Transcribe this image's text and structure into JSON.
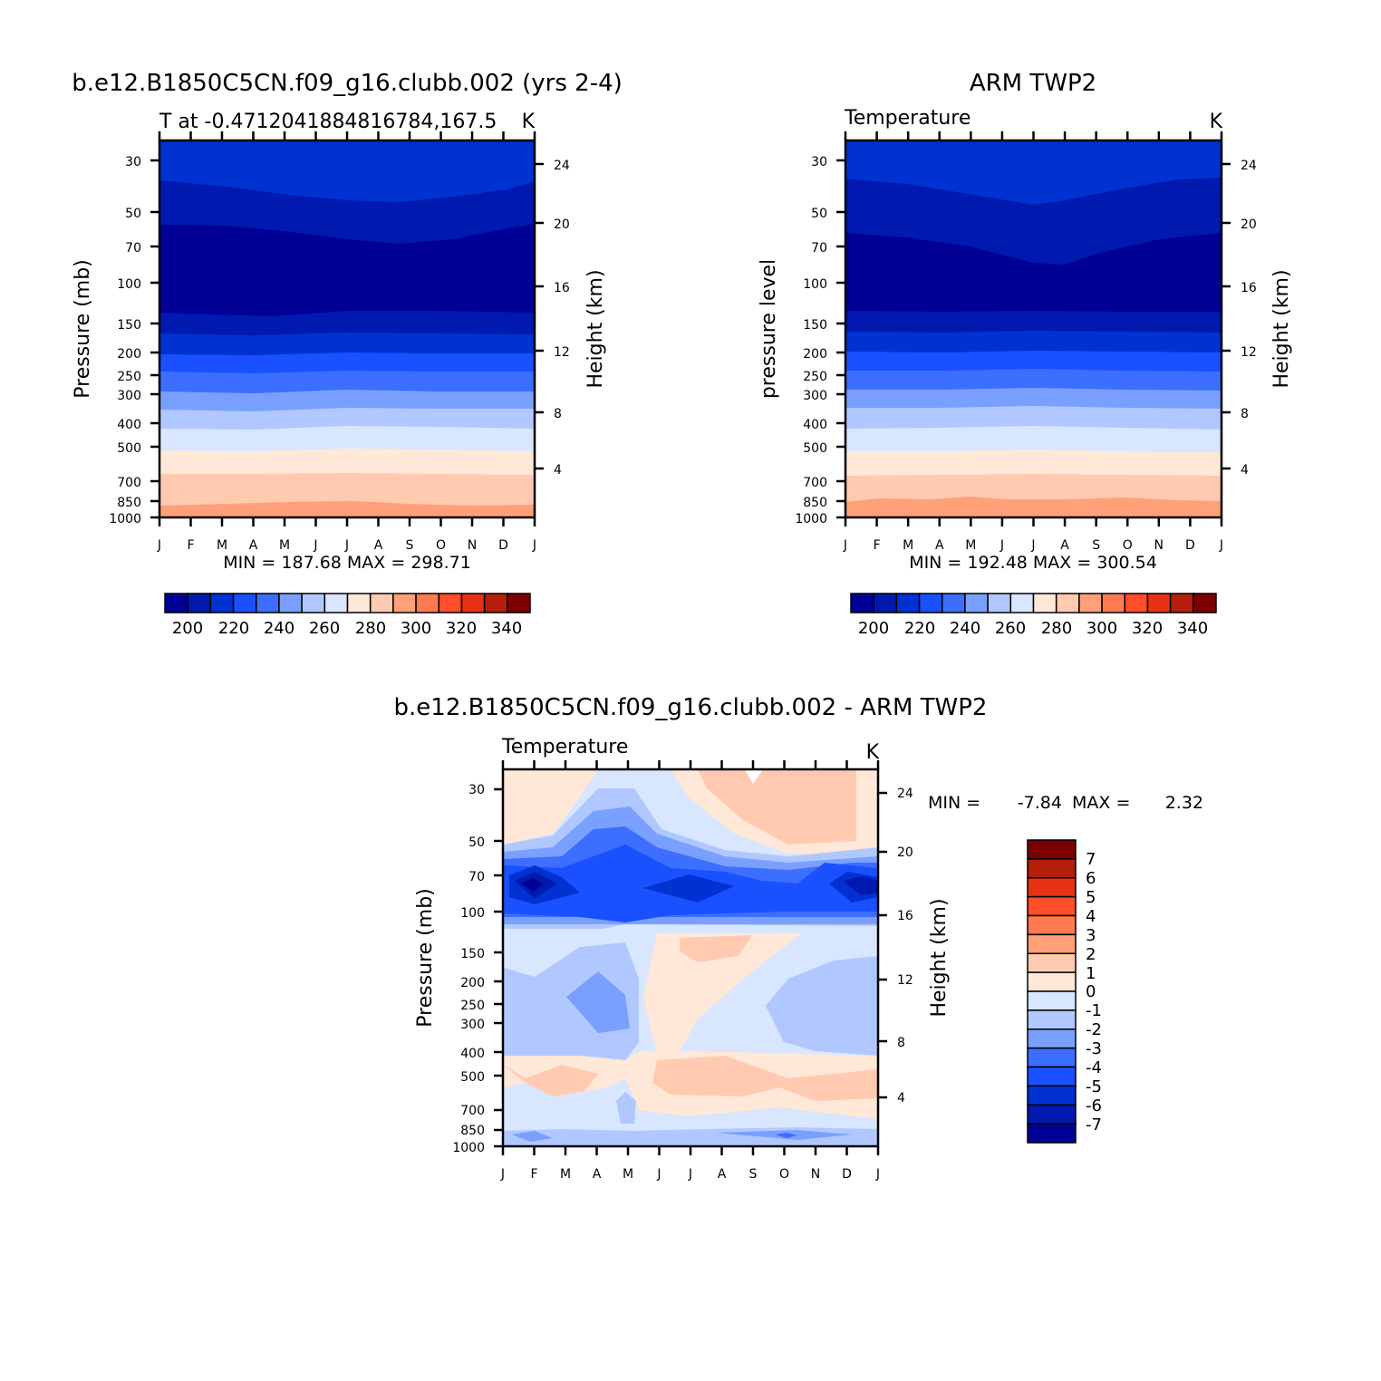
{
  "colors": {
    "temperature_levels": [
      "#000096",
      "#0019AE",
      "#0032D2",
      "#1950FF",
      "#3C6EFF",
      "#7AA0FF",
      "#B0C8FF",
      "#D8E6FF",
      "#FFE8D8",
      "#FFCAB0",
      "#FFA078",
      "#FF7A50",
      "#FF4E28",
      "#E63214",
      "#B41E0A",
      "#7D0000"
    ],
    "difference_levels": [
      "#000096",
      "#0019AE",
      "#0032D2",
      "#1950FF",
      "#3C6EFF",
      "#7AA0FF",
      "#B0C8FF",
      "#D8E6FF",
      "#FFE8D8",
      "#FFCAB0",
      "#FFA078",
      "#FF7A50",
      "#FF4E28",
      "#E63214",
      "#B41E0A",
      "#7D0000"
    ]
  },
  "chart_data": [
    {
      "type": "heatmap",
      "title": "b.e12.B1850C5CN.f09_g16.clubb.002 (yrs 2-4)",
      "subtitle_left": "T at -0.4712041884816784,167.5",
      "subtitle_right": "K",
      "ylabel": "Pressure (mb)",
      "y2label": "Height (km)",
      "x_ticks": [
        "J",
        "F",
        "M",
        "A",
        "M",
        "J",
        "J",
        "A",
        "S",
        "O",
        "N",
        "D",
        "J"
      ],
      "y_ticks": [
        "30",
        "50",
        "70",
        "100",
        "150",
        "200",
        "250",
        "300",
        "400",
        "500",
        "700",
        "850",
        "1000"
      ],
      "y2_ticks": [
        "24",
        "20",
        "16",
        "12",
        "8",
        "4"
      ],
      "stats": "MIN = 187.68 MAX = 298.71",
      "colorbar_labels": [
        "200",
        "220",
        "240",
        "260",
        "280",
        "300",
        "320",
        "340"
      ],
      "ylim": [
        1000,
        22
      ],
      "levels": [
        195,
        200,
        210,
        220,
        230,
        240,
        250,
        260,
        270,
        280,
        290,
        300,
        310,
        320,
        330,
        340,
        350
      ]
    },
    {
      "type": "heatmap",
      "title": "ARM TWP2",
      "subtitle_left": "Temperature",
      "subtitle_right": "K",
      "ylabel": "pressure level",
      "y2label": "Height (km)",
      "x_ticks": [
        "J",
        "F",
        "M",
        "A",
        "M",
        "J",
        "J",
        "A",
        "S",
        "O",
        "N",
        "D",
        "J"
      ],
      "y_ticks": [
        "30",
        "50",
        "70",
        "100",
        "150",
        "200",
        "250",
        "300",
        "400",
        "500",
        "700",
        "850",
        "1000"
      ],
      "y2_ticks": [
        "24",
        "20",
        "16",
        "12",
        "8",
        "4"
      ],
      "stats": "MIN = 192.48 MAX = 300.54",
      "colorbar_labels": [
        "200",
        "220",
        "240",
        "260",
        "280",
        "300",
        "320",
        "340"
      ],
      "ylim": [
        1000,
        22
      ]
    },
    {
      "type": "heatmap",
      "title": "b.e12.B1850C5CN.f09_g16.clubb.002 - ARM TWP2",
      "subtitle_left": "Temperature",
      "subtitle_right": "K",
      "ylabel": "Pressure (mb)",
      "y2label": "Height (km)",
      "x_ticks": [
        "J",
        "F",
        "M",
        "A",
        "M",
        "J",
        "J",
        "A",
        "S",
        "O",
        "N",
        "D",
        "J"
      ],
      "y_ticks": [
        "30",
        "50",
        "70",
        "100",
        "150",
        "200",
        "250",
        "300",
        "400",
        "500",
        "700",
        "850",
        "1000"
      ],
      "y2_ticks": [
        "24",
        "20",
        "16",
        "12",
        "8",
        "4"
      ],
      "stats_min_label": "MIN =",
      "stats_min": "-7.84",
      "stats_max_label": "MAX =",
      "stats_max": "2.32",
      "colorbar_labels": [
        "7",
        "6",
        "5",
        "4",
        "3",
        "2",
        "1",
        "0",
        "-1",
        "-2",
        "-3",
        "-4",
        "-5",
        "-6",
        "-7"
      ],
      "ylim": [
        1000,
        22
      ]
    }
  ]
}
